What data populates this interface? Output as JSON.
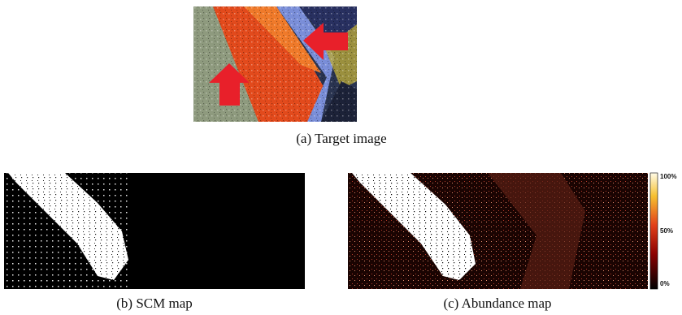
{
  "figure": {
    "panels": [
      {
        "caption": "(a) Target image"
      },
      {
        "caption": "(b) SCM map"
      },
      {
        "caption": "(c) Abundance map",
        "colorbar": {
          "labels": [
            "100%",
            "50%",
            "0%"
          ]
        }
      }
    ]
  }
}
